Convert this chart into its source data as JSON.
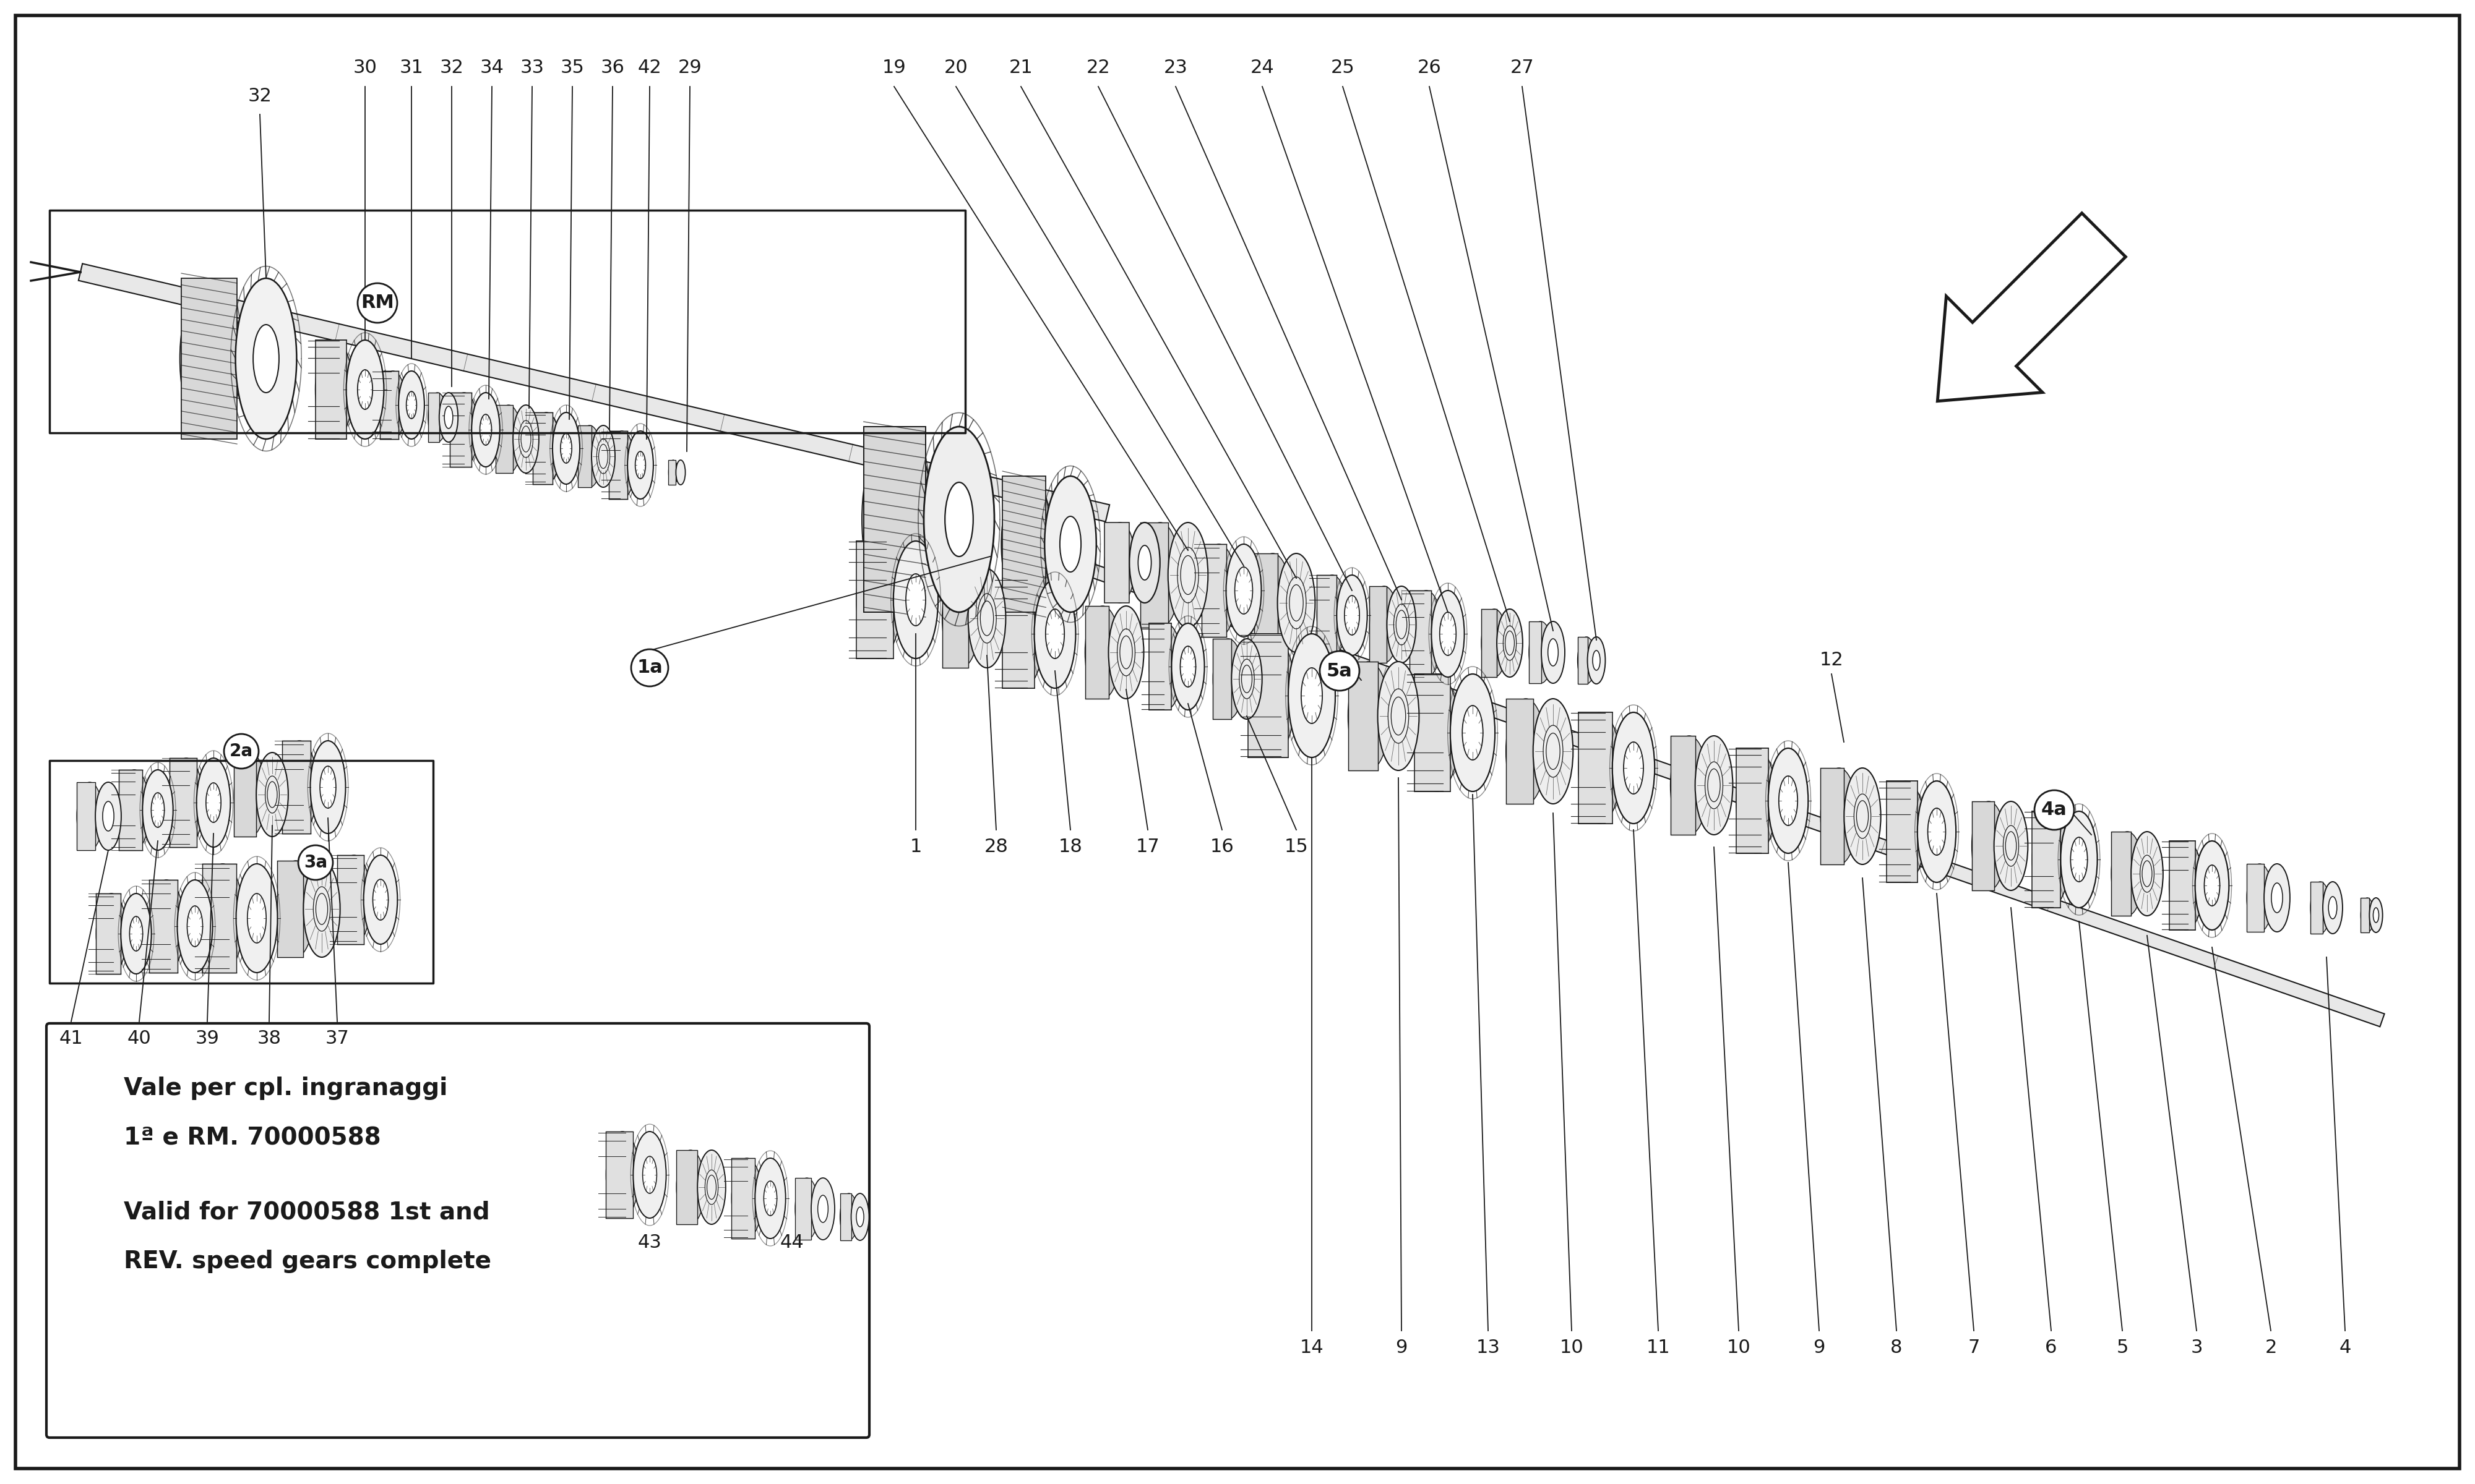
{
  "bg_color": "#ffffff",
  "line_color": "#1a1a1a",
  "fig_width": 40,
  "fig_height": 24,
  "note_line1": "Vale per cpl. ingranaggi",
  "note_line2": "1ª e RM. 70000588",
  "note_line3": "Valid for 70000588 1st and",
  "note_line4": "REV. speed gears complete"
}
